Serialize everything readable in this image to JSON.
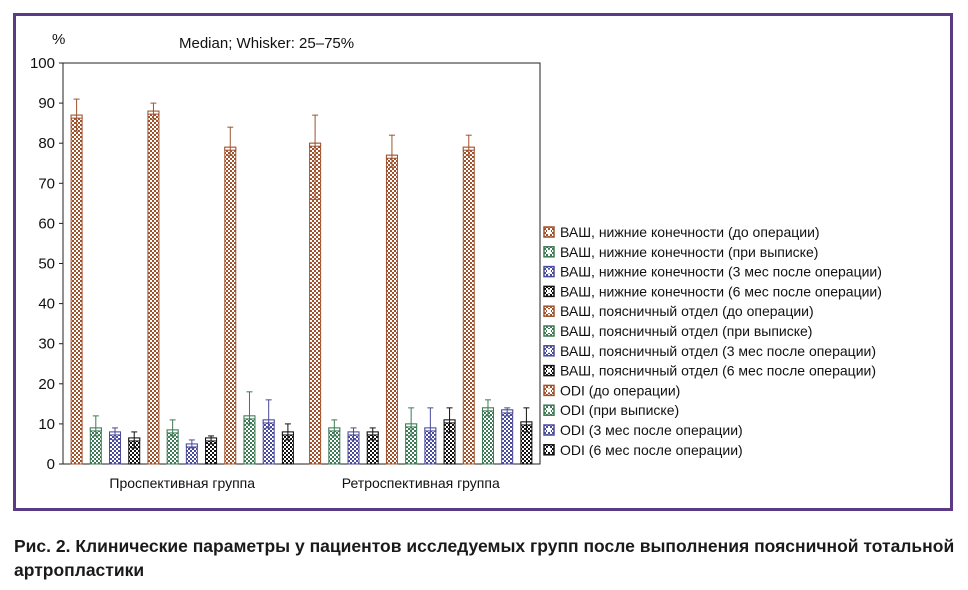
{
  "caption": "Рис. 2. Клинические параметры у пациентов исследуемых групп после выполнения поясничной тотальной артропластики",
  "chart_data": {
    "type": "bar",
    "subtitle": "Median; Whisker: 25–75%",
    "ylabel": "%",
    "ylim": [
      0,
      100
    ],
    "yticks": [
      0,
      10,
      20,
      30,
      40,
      50,
      60,
      70,
      80,
      90,
      100
    ],
    "legend_position": "right",
    "categories": [
      "Проспективная группа",
      "Ретроспективная группа"
    ],
    "series": [
      {
        "name": "ВАШ, нижние конечности (до операции)",
        "color": "#a0522d",
        "values": [
          87,
          80
        ],
        "whisker_low": [
          83,
          66
        ],
        "whisker_high": [
          91,
          87
        ]
      },
      {
        "name": "ВАШ, нижние конечности (при выписке)",
        "color": "#3d7a55",
        "values": [
          9,
          9
        ],
        "whisker_low": [
          7,
          7
        ],
        "whisker_high": [
          12,
          11
        ]
      },
      {
        "name": "ВАШ, нижние конечности (3 мес после операции)",
        "color": "#4a4a9a",
        "values": [
          8,
          8
        ],
        "whisker_low": [
          6,
          6
        ],
        "whisker_high": [
          9,
          9
        ]
      },
      {
        "name": "ВАШ, нижние конечности (6 мес после операции)",
        "color": "#111111",
        "values": [
          6.5,
          8
        ],
        "whisker_low": [
          4,
          6
        ],
        "whisker_high": [
          8,
          9
        ]
      },
      {
        "name": "ВАШ, поясничный отдел (до операции)",
        "color": "#a0522d",
        "values": [
          88,
          77
        ],
        "whisker_low": [
          86,
          74
        ],
        "whisker_high": [
          90,
          82
        ]
      },
      {
        "name": "ВАШ, поясничный отдел (при выписке)",
        "color": "#3d7a55",
        "values": [
          8.5,
          10
        ],
        "whisker_low": [
          7,
          7
        ],
        "whisker_high": [
          11,
          14
        ]
      },
      {
        "name": "ВАШ, поясничный отдел (3 мес после операции)",
        "color": "#4a4a9a",
        "values": [
          5,
          9
        ],
        "whisker_low": [
          4,
          6
        ],
        "whisker_high": [
          6,
          14
        ]
      },
      {
        "name": "ВАШ, поясничный отдел (6 мес после операции)",
        "color": "#111111",
        "values": [
          6.5,
          11
        ],
        "whisker_low": [
          5,
          8
        ],
        "whisker_high": [
          7,
          14
        ]
      },
      {
        "name": "ODI (до операции)",
        "color": "#a0522d",
        "values": [
          79,
          79
        ],
        "whisker_low": [
          77,
          77
        ],
        "whisker_high": [
          84,
          82
        ]
      },
      {
        "name": "ODI (при выписке)",
        "color": "#3d7a55",
        "values": [
          12,
          14
        ],
        "whisker_low": [
          10,
          12
        ],
        "whisker_high": [
          18,
          16
        ]
      },
      {
        "name": "ODI (3 мес после операции)",
        "color": "#4a4a9a",
        "values": [
          11,
          13.5
        ],
        "whisker_low": [
          9,
          12
        ],
        "whisker_high": [
          16,
          14
        ]
      },
      {
        "name": "ODI (6 мес после операции)",
        "color": "#111111",
        "values": [
          8,
          10.5
        ],
        "whisker_low": [
          6,
          8
        ],
        "whisker_high": [
          10,
          14
        ]
      }
    ]
  }
}
